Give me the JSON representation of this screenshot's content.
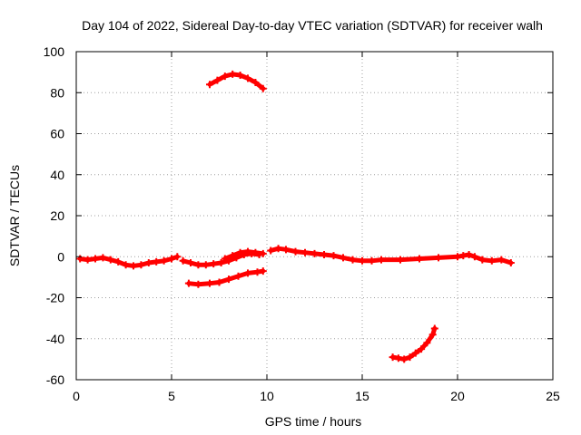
{
  "chart_data": {
    "type": "scatter",
    "title": "Day 104 of 2022, Sidereal Day-to-day VTEC variation (SDTVAR) for receiver walh",
    "xlabel": "GPS time / hours",
    "ylabel": "SDTVAR / TECUs",
    "xlim": [
      0,
      25
    ],
    "ylim": [
      -60,
      100
    ],
    "grid": true,
    "xticks": [
      0,
      5,
      10,
      15,
      20,
      25
    ],
    "yticks": [
      -60,
      -40,
      -20,
      0,
      20,
      40,
      60,
      80,
      100
    ],
    "series_color": "#ff0000",
    "series": [
      {
        "name": "track-main-early",
        "x": [
          0.2,
          0.6,
          1.0,
          1.4,
          1.8,
          2.2,
          2.6,
          3.0,
          3.4,
          3.8,
          4.2,
          4.6,
          5.0,
          5.3
        ],
        "y": [
          -1,
          -1.5,
          -1,
          -0.5,
          -1.5,
          -2.5,
          -4,
          -4.5,
          -4,
          -3,
          -2.5,
          -2,
          -1,
          0
        ]
      },
      {
        "name": "track-main-mid",
        "x": [
          5.6,
          6.0,
          6.4,
          6.8,
          7.2,
          7.6,
          8.0,
          8.4,
          8.8,
          9.2,
          9.6
        ],
        "y": [
          -2,
          -3,
          -4,
          -4,
          -3.5,
          -3,
          -2,
          -0.5,
          1,
          1.5,
          1
        ]
      },
      {
        "name": "track-upper-mid",
        "x": [
          7.8,
          8.2,
          8.6,
          9.0,
          9.4,
          9.8
        ],
        "y": [
          -1,
          0.5,
          2,
          2.5,
          2,
          1.5
        ]
      },
      {
        "name": "track-main-late",
        "x": [
          10.2,
          10.6,
          11.0,
          11.5,
          12.0,
          12.5,
          13.0,
          13.5,
          14.0,
          14.5,
          15.0,
          15.5,
          16.0,
          17.0,
          18.0,
          19.0,
          20.0,
          20.3,
          20.6,
          20.9,
          21.3,
          21.8,
          22.3,
          22.8
        ],
        "y": [
          3,
          4,
          3.5,
          2.5,
          2,
          1.5,
          1,
          0.5,
          -0.5,
          -1.5,
          -2,
          -2,
          -1.5,
          -1.5,
          -1,
          -0.5,
          0,
          0.5,
          1,
          0,
          -1.5,
          -2,
          -1.5,
          -3
        ]
      },
      {
        "name": "track-lower-mid",
        "x": [
          5.9,
          6.4,
          7.0,
          7.5,
          8.0,
          8.5,
          9.0,
          9.5,
          9.8
        ],
        "y": [
          -13,
          -13.5,
          -13,
          -12.5,
          -11,
          -9.5,
          -8,
          -7.5,
          -7
        ]
      },
      {
        "name": "track-upper",
        "x": [
          7.0,
          7.4,
          7.8,
          8.2,
          8.6,
          9.0,
          9.4,
          9.8
        ],
        "y": [
          84,
          86,
          88,
          89,
          88.5,
          87,
          85,
          82
        ]
      },
      {
        "name": "track-lower",
        "x": [
          16.6,
          16.9,
          17.2,
          17.5,
          17.8,
          18.1,
          18.4,
          18.7,
          18.8
        ],
        "y": [
          -49,
          -49.5,
          -50,
          -49,
          -47,
          -45,
          -42,
          -38,
          -35
        ]
      }
    ]
  }
}
